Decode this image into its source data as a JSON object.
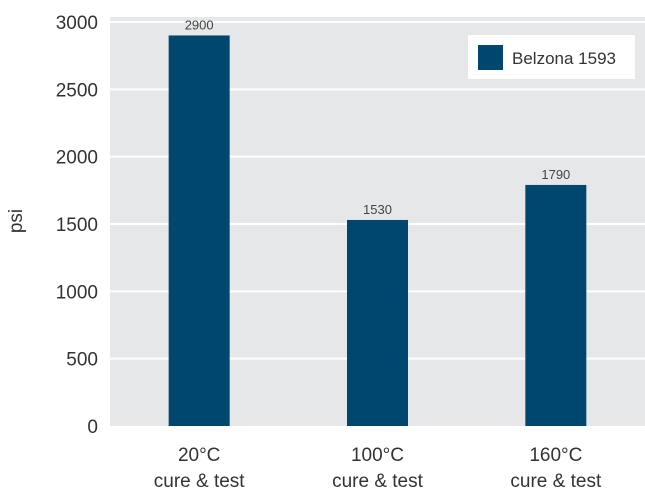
{
  "chart_data": {
    "type": "bar",
    "categories": [
      [
        "20°C",
        "cure & test"
      ],
      [
        "100°C",
        "cure & test"
      ],
      [
        "160°C",
        "cure & test"
      ]
    ],
    "series": [
      {
        "name": "Belzona 1593",
        "values": [
          2900,
          1530,
          1790
        ],
        "color": "#00476f"
      }
    ],
    "data_labels": [
      "2900",
      "1530",
      "1790"
    ],
    "ylabel": "psi",
    "xlabel": "",
    "ylim": [
      0,
      3000
    ],
    "yticks": [
      0,
      500,
      1000,
      1500,
      2000,
      2500,
      3000
    ],
    "grid": true,
    "legend_position": "top-right",
    "plot_background": "#e6e7e8"
  }
}
